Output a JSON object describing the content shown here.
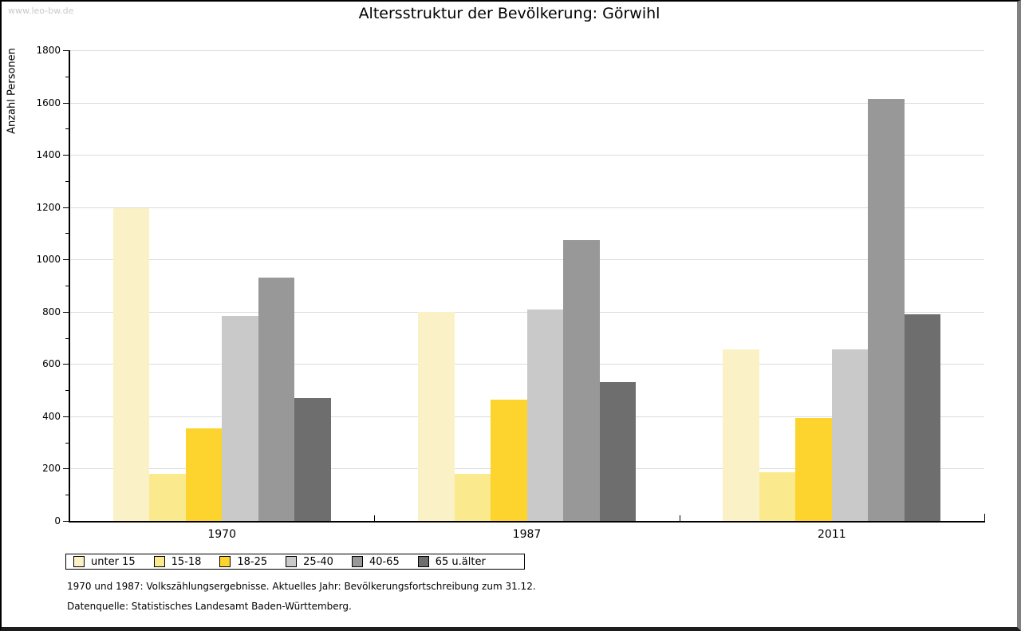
{
  "watermark": "www.leo-bw.de",
  "chart_data": {
    "type": "bar",
    "title": "Altersstruktur der Bevölkerung: Görwihl",
    "ylabel": "Anzahl Personen",
    "xlabel": "",
    "ylim": [
      0,
      1800
    ],
    "ytick_step": 200,
    "minor_tick_step": 100,
    "grid": true,
    "legend_position": "bottom",
    "categories": [
      "1970",
      "1987",
      "2011"
    ],
    "series": [
      {
        "name": "unter 15",
        "color": "#FAF2C6",
        "values": [
          1195,
          800,
          655
        ]
      },
      {
        "name": "15-18",
        "color": "#FBE98E",
        "values": [
          180,
          180,
          185
        ]
      },
      {
        "name": "18-25",
        "color": "#FCD42D",
        "values": [
          355,
          465,
          395
        ]
      },
      {
        "name": "25-40",
        "color": "#C9C9C9",
        "values": [
          785,
          810,
          655
        ]
      },
      {
        "name": "40-65",
        "color": "#989898",
        "values": [
          930,
          1075,
          1615
        ]
      },
      {
        "name": "65 u.älter",
        "color": "#6E6E6E",
        "values": [
          470,
          530,
          790
        ]
      }
    ]
  },
  "footnotes": [
    "1970 und 1987: Volkszählungsergebnisse. Aktuelles Jahr: Bevölkerungsfortschreibung zum 31.12.",
    "Datenquelle: Statistisches Landesamt Baden-Württemberg."
  ],
  "colors": {
    "grid": "#DCDCDC",
    "axis": "#000000",
    "watermark": "#C9C9C9",
    "legend_border": "#000000"
  }
}
